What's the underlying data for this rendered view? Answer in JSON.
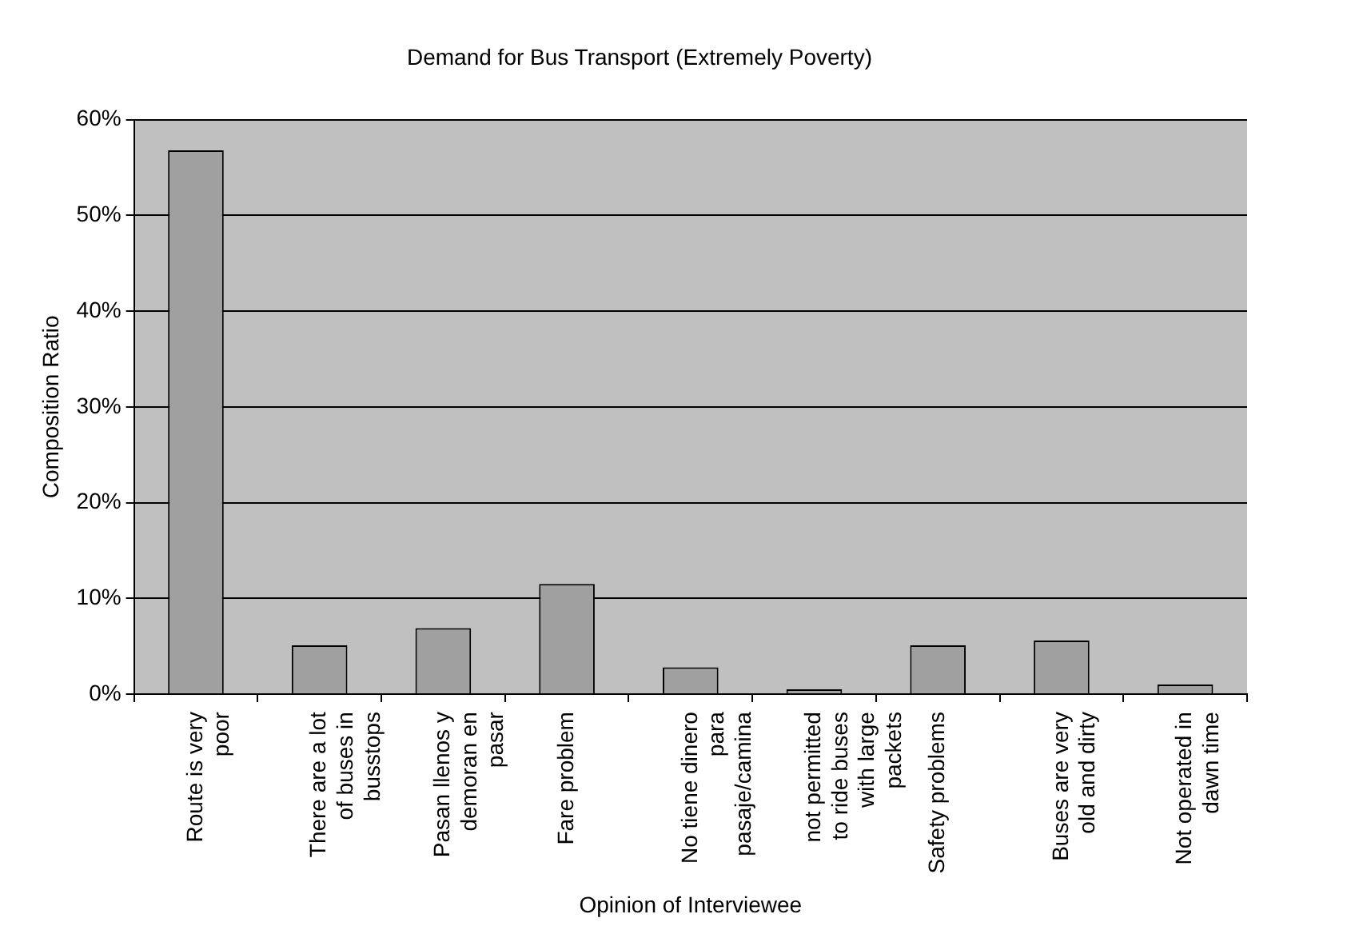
{
  "chart_data": {
    "type": "bar",
    "title": "Demand for Bus Transport (Extremely Poverty)",
    "xlabel": "Opinion of Interviewee",
    "ylabel": "Composition Ratio",
    "categories": [
      "Route is very poor",
      "There are a lot of buses in busstops",
      "Pasan llenos y demoran en pasar",
      "Fare problem",
      "No tiene dinero para pasaje/camina",
      "not permitted to ride buses with large packets",
      "Safety problems",
      "Buses are very old and dirty",
      "Not operated in dawn time"
    ],
    "values": [
      56.8,
      5.1,
      6.9,
      11.5,
      2.8,
      0.5,
      5.1,
      5.6,
      1.0
    ],
    "color": "#a0a0a0",
    "ylim": [
      0,
      60
    ],
    "yticks": [
      {
        "value": 0,
        "label": "0%"
      },
      {
        "value": 10,
        "label": "10%"
      },
      {
        "value": 20,
        "label": "20%"
      },
      {
        "value": 30,
        "label": "30%"
      },
      {
        "value": 40,
        "label": "40%"
      },
      {
        "value": 50,
        "label": "50%"
      },
      {
        "value": 60,
        "label": "60%"
      }
    ],
    "grid": "y"
  }
}
